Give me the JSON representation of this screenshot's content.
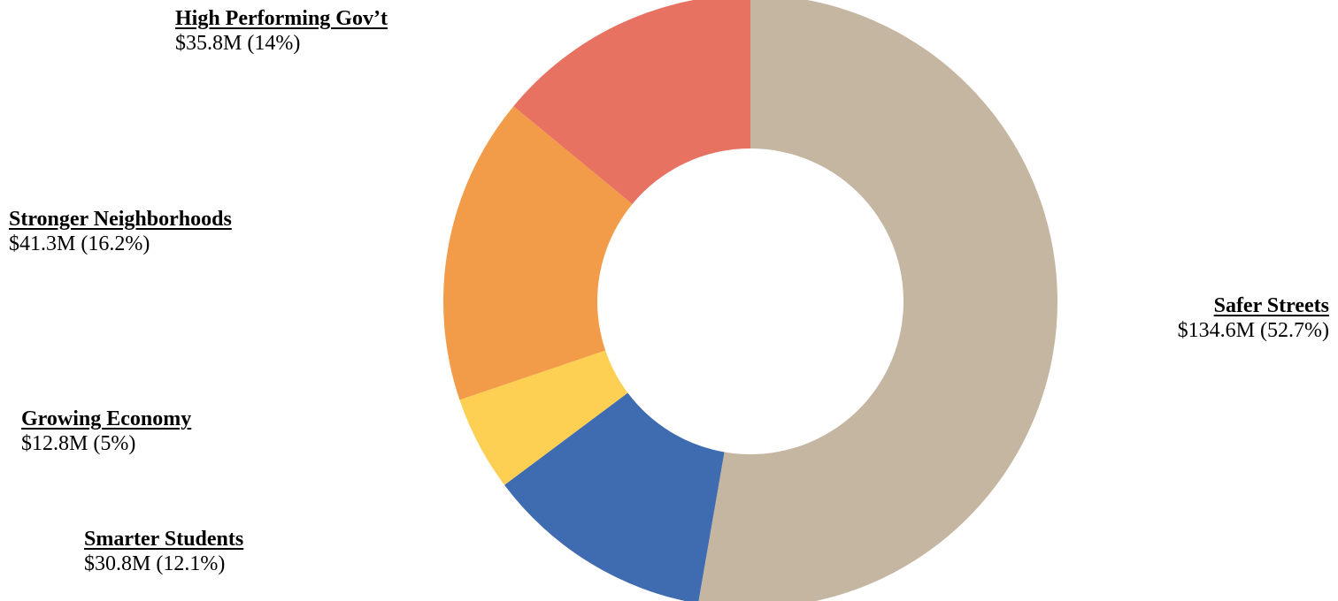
{
  "chart_data": {
    "type": "pie",
    "variant": "donut",
    "title": "",
    "slices": [
      {
        "name": "Safer Streets",
        "value": 134.6,
        "percent": 52.7,
        "value_label": "$134.6M (52.7%)",
        "color": "#C5B6A2"
      },
      {
        "name": "Smarter Students",
        "value": 30.8,
        "percent": 12.1,
        "value_label": "$30.8M (12.1%)",
        "color": "#3F6BB0"
      },
      {
        "name": "Growing Economy",
        "value": 12.8,
        "percent": 5.0,
        "value_label": "$12.8M (5%)",
        "color": "#FDCF52"
      },
      {
        "name": "Stronger Neighborhoods",
        "value": 41.3,
        "percent": 16.2,
        "value_label": "$41.3M (16.2%)",
        "color": "#F29B48"
      },
      {
        "name": "High Performing Gov’t",
        "value": 35.8,
        "percent": 14.0,
        "value_label": "$35.8M (14%)",
        "color": "#E87262"
      }
    ],
    "start_angle": "12 o'clock",
    "direction": "clockwise",
    "legend": "none"
  }
}
